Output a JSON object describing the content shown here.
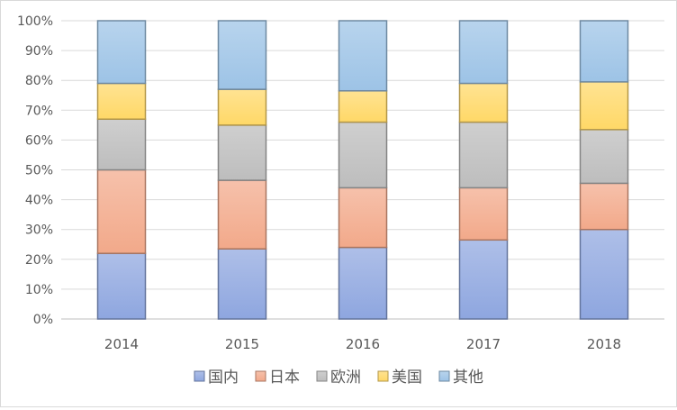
{
  "chart_data": {
    "type": "bar",
    "stacked": true,
    "percent_stacked": true,
    "categories": [
      "2014",
      "2015",
      "2016",
      "2017",
      "2018"
    ],
    "series": [
      {
        "name": "国内",
        "color": "#8ea6df",
        "values": [
          22,
          23.5,
          24,
          26.5,
          30
        ]
      },
      {
        "name": "日本",
        "color": "#f2a98a",
        "values": [
          28,
          23,
          20,
          17.5,
          15.5
        ]
      },
      {
        "name": "欧洲",
        "color": "#bdbdbd",
        "values": [
          17,
          18.5,
          22,
          22,
          18
        ]
      },
      {
        "name": "美国",
        "color": "#ffd867",
        "values": [
          12,
          12,
          10.5,
          13,
          16
        ]
      },
      {
        "name": "其他",
        "color": "#9dc3e6",
        "values": [
          21,
          23,
          23.5,
          21,
          20.5
        ]
      }
    ],
    "y_ticks": [
      "0%",
      "10%",
      "20%",
      "30%",
      "40%",
      "50%",
      "60%",
      "70%",
      "80%",
      "90%",
      "100%"
    ],
    "ylim": [
      0,
      100
    ],
    "grid": true,
    "legend_position": "bottom",
    "title": "",
    "xlabel": "",
    "ylabel": ""
  }
}
